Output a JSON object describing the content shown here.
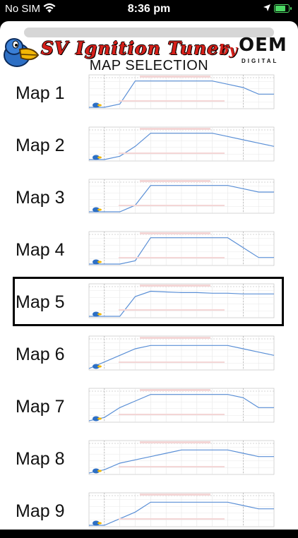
{
  "status_bar": {
    "carrier": "No SIM",
    "time": "8:36 pm",
    "battery_level": 0.8,
    "accent_color": "#4cd964"
  },
  "app": {
    "logo_title": "SV Ignition Tuner",
    "logo_by": "by",
    "logo_brand": "OEM",
    "logo_brand_sub": "DIGITAL",
    "heading": "MAP SELECTION"
  },
  "maps": [
    {
      "label": "Map 1",
      "selected": false
    },
    {
      "label": "Map 2",
      "selected": false
    },
    {
      "label": "Map 3",
      "selected": false
    },
    {
      "label": "Map 4",
      "selected": false
    },
    {
      "label": "Map 5",
      "selected": true
    },
    {
      "label": "Map 6",
      "selected": false
    },
    {
      "label": "Map 7",
      "selected": false
    },
    {
      "label": "Map 8",
      "selected": false
    },
    {
      "label": "Map 9",
      "selected": false
    }
  ],
  "chart_data": [
    {
      "type": "line",
      "x": [
        0,
        1000,
        2000,
        3000,
        4000,
        5000,
        6000,
        7000,
        8000,
        9000,
        10000,
        11000,
        12000
      ],
      "y": [
        0,
        0,
        5,
        40,
        40,
        40,
        40,
        40,
        40,
        35,
        30,
        20,
        20
      ]
    },
    {
      "type": "line",
      "x": [
        0,
        1000,
        2000,
        3000,
        4000,
        5000,
        6000,
        7000,
        8000,
        9000,
        10000,
        11000,
        12000
      ],
      "y": [
        0,
        0,
        5,
        20,
        40,
        40,
        40,
        40,
        40,
        35,
        30,
        25,
        20
      ]
    },
    {
      "type": "line",
      "x": [
        0,
        1000,
        2000,
        3000,
        4000,
        5000,
        6000,
        7000,
        8000,
        9000,
        10000,
        11000,
        12000
      ],
      "y": [
        0,
        0,
        0,
        10,
        40,
        40,
        40,
        40,
        40,
        40,
        35,
        30,
        30
      ]
    },
    {
      "type": "line",
      "x": [
        0,
        1000,
        2000,
        3000,
        4000,
        5000,
        6000,
        7000,
        8000,
        9000,
        10000,
        11000,
        12000
      ],
      "y": [
        0,
        0,
        0,
        5,
        40,
        40,
        40,
        40,
        40,
        40,
        25,
        10,
        10
      ]
    },
    {
      "type": "line",
      "x": [
        0,
        1000,
        2000,
        3000,
        4000,
        5000,
        6000,
        7000,
        8000,
        9000,
        10000,
        11000,
        12000
      ],
      "y": [
        0,
        0,
        0,
        30,
        38,
        37,
        36,
        36,
        35,
        35,
        34,
        34,
        34
      ]
    },
    {
      "type": "line",
      "x": [
        0,
        1000,
        2000,
        3000,
        4000,
        5000,
        6000,
        7000,
        8000,
        9000,
        10000,
        11000,
        12000
      ],
      "y": [
        0,
        10,
        20,
        30,
        35,
        35,
        35,
        35,
        35,
        35,
        30,
        25,
        20
      ]
    },
    {
      "type": "line",
      "x": [
        0,
        1000,
        2000,
        3000,
        4000,
        5000,
        6000,
        7000,
        8000,
        9000,
        10000,
        11000,
        12000
      ],
      "y": [
        0,
        5,
        20,
        30,
        40,
        40,
        40,
        40,
        40,
        40,
        35,
        20,
        20
      ]
    },
    {
      "type": "line",
      "x": [
        0,
        1000,
        2000,
        3000,
        4000,
        5000,
        6000,
        7000,
        8000,
        9000,
        10000,
        11000,
        12000
      ],
      "y": [
        0,
        5,
        15,
        20,
        25,
        30,
        35,
        35,
        35,
        35,
        30,
        25,
        25
      ]
    },
    {
      "type": "line",
      "x": [
        0,
        1000,
        2000,
        3000,
        4000,
        5000,
        6000,
        7000,
        8000,
        9000,
        10000,
        11000,
        12000
      ],
      "y": [
        0,
        0,
        10,
        20,
        35,
        35,
        35,
        35,
        35,
        35,
        30,
        25,
        25
      ]
    }
  ]
}
